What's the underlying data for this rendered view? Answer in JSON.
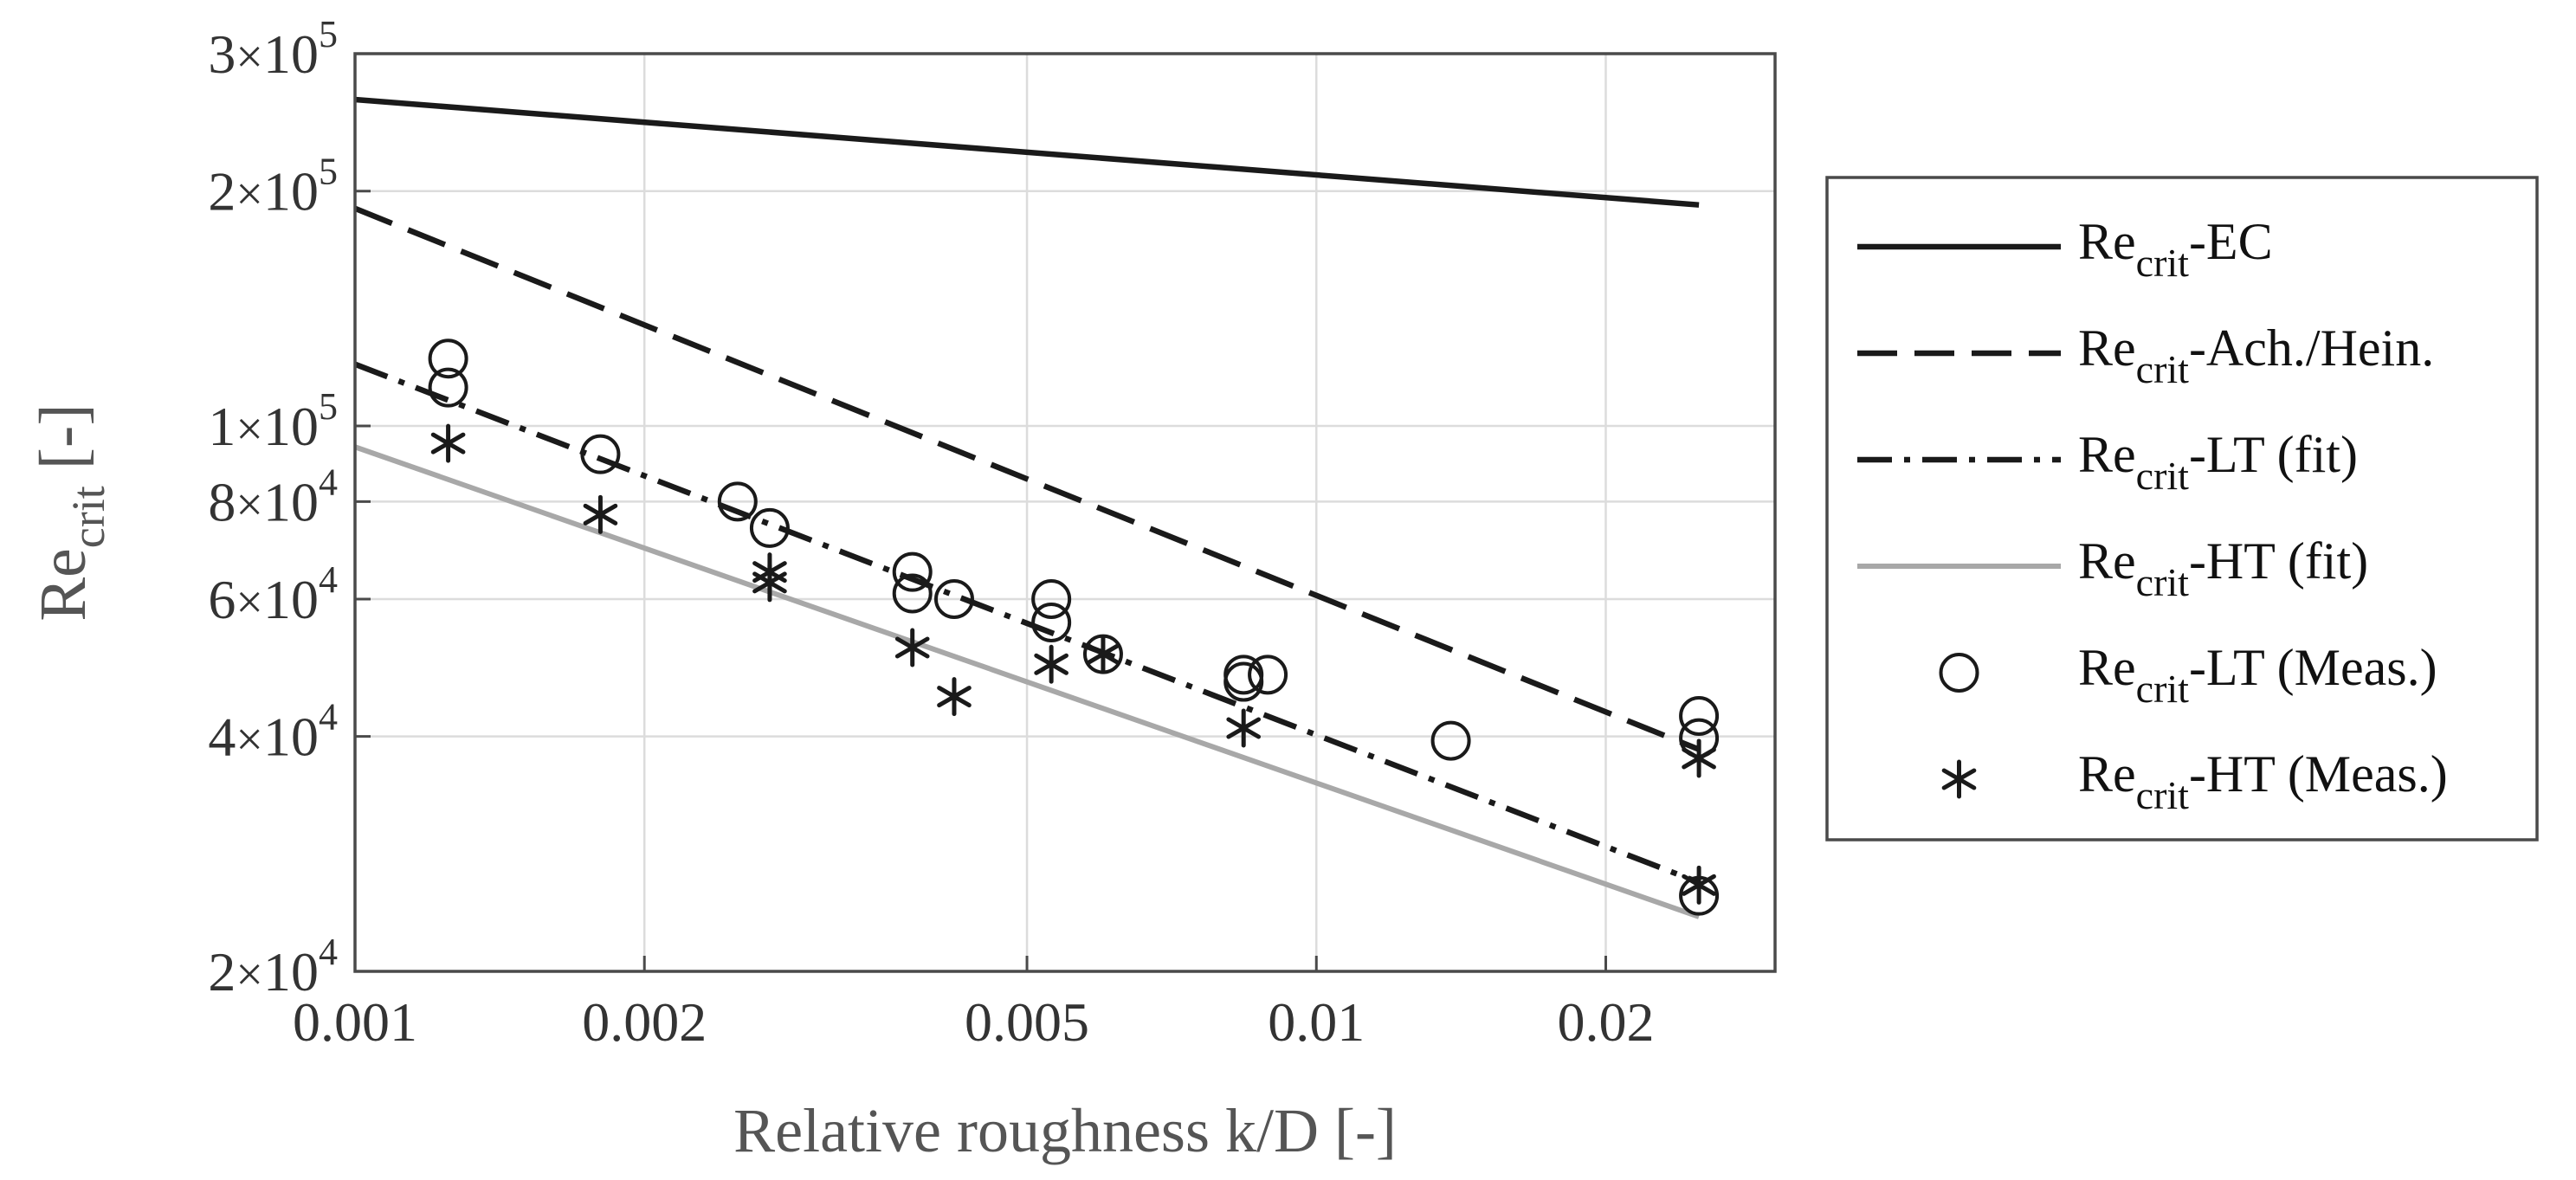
{
  "chart_data": {
    "type": "line",
    "title": "",
    "xlabel": "Relative roughness k/D [-]",
    "ylabel": {
      "main": "Re",
      "sub": "crit",
      "suffix": " [-]"
    },
    "xscale": "log",
    "yscale": "log",
    "xlim": [
      0.001,
      0.03
    ],
    "ylim": [
      20000,
      300000
    ],
    "grid": true,
    "x_ticks": [
      {
        "value": 0.001,
        "label": "0.001"
      },
      {
        "value": 0.002,
        "label": "0.002"
      },
      {
        "value": 0.005,
        "label": "0.005"
      },
      {
        "value": 0.01,
        "label": "0.01"
      },
      {
        "value": 0.02,
        "label": "0.02"
      }
    ],
    "y_ticks": [
      {
        "value": 20000,
        "mantissa": "2",
        "times": "×",
        "base": "10",
        "exp": "4"
      },
      {
        "value": 40000,
        "mantissa": "4",
        "times": "×",
        "base": "10",
        "exp": "4"
      },
      {
        "value": 60000,
        "mantissa": "6",
        "times": "×",
        "base": "10",
        "exp": "4"
      },
      {
        "value": 80000,
        "mantissa": "8",
        "times": "×",
        "base": "10",
        "exp": "4"
      },
      {
        "value": 100000,
        "mantissa": "1",
        "times": "×",
        "base": "10",
        "exp": "5"
      },
      {
        "value": 200000,
        "mantissa": "2",
        "times": "×",
        "base": "10",
        "exp": "5"
      },
      {
        "value": 300000,
        "mantissa": "3",
        "times": "×",
        "base": "10",
        "exp": "5"
      }
    ],
    "series": [
      {
        "name": "EC",
        "legend_main": "Re",
        "legend_sub": "crit",
        "legend_suffix": "-EC",
        "kind": "line",
        "style": "solid",
        "color": "#1a1a1a",
        "x": [
          0.001,
          0.025
        ],
        "y": [
          262000,
          192000
        ]
      },
      {
        "name": "Ach./Hein.",
        "legend_main": "Re",
        "legend_sub": "crit",
        "legend_suffix": "-Ach./Hein.",
        "kind": "line",
        "style": "dashed",
        "color": "#1a1a1a",
        "x": [
          0.001,
          0.025
        ],
        "y": [
          190000,
          38500
        ]
      },
      {
        "name": "LT (fit)",
        "legend_main": "Re",
        "legend_sub": "crit",
        "legend_suffix": "-LT (fit)",
        "kind": "line",
        "style": "dashdot",
        "color": "#1a1a1a",
        "x": [
          0.001,
          0.025
        ],
        "y": [
          120000,
          26000
        ]
      },
      {
        "name": "HT (fit)",
        "legend_main": "Re",
        "legend_sub": "crit",
        "legend_suffix": "-HT (fit)",
        "kind": "line",
        "style": "solid",
        "color": "#a8a8a8",
        "x": [
          0.001,
          0.025
        ],
        "y": [
          94000,
          23500
        ]
      },
      {
        "name": "LT (Meas.)",
        "legend_main": "Re",
        "legend_sub": "crit",
        "legend_suffix": "-LT (Meas.)",
        "kind": "scatter",
        "marker": "circle",
        "color": "#1a1a1a",
        "points": [
          {
            "x": 0.00125,
            "y": 122000
          },
          {
            "x": 0.00125,
            "y": 112000
          },
          {
            "x": 0.0018,
            "y": 92000
          },
          {
            "x": 0.0025,
            "y": 80000
          },
          {
            "x": 0.0027,
            "y": 74000
          },
          {
            "x": 0.0038,
            "y": 65000
          },
          {
            "x": 0.0038,
            "y": 61000
          },
          {
            "x": 0.0042,
            "y": 60000
          },
          {
            "x": 0.0053,
            "y": 60000
          },
          {
            "x": 0.0053,
            "y": 56000
          },
          {
            "x": 0.006,
            "y": 51000
          },
          {
            "x": 0.0084,
            "y": 48000
          },
          {
            "x": 0.0089,
            "y": 48000
          },
          {
            "x": 0.0084,
            "y": 47000
          },
          {
            "x": 0.0138,
            "y": 39500
          },
          {
            "x": 0.025,
            "y": 42500
          },
          {
            "x": 0.025,
            "y": 39800
          },
          {
            "x": 0.025,
            "y": 25000
          }
        ]
      },
      {
        "name": "HT (Meas.)",
        "legend_main": "Re",
        "legend_sub": "crit",
        "legend_suffix": "-HT (Meas.)",
        "kind": "scatter",
        "marker": "asterisk",
        "color": "#1a1a1a",
        "points": [
          {
            "x": 0.00125,
            "y": 95000
          },
          {
            "x": 0.0018,
            "y": 77000
          },
          {
            "x": 0.0027,
            "y": 65000
          },
          {
            "x": 0.0027,
            "y": 63000
          },
          {
            "x": 0.0038,
            "y": 52000
          },
          {
            "x": 0.0042,
            "y": 45000
          },
          {
            "x": 0.0053,
            "y": 49500
          },
          {
            "x": 0.006,
            "y": 51000
          },
          {
            "x": 0.0084,
            "y": 41000
          },
          {
            "x": 0.025,
            "y": 37500
          },
          {
            "x": 0.025,
            "y": 25800
          }
        ]
      }
    ]
  }
}
